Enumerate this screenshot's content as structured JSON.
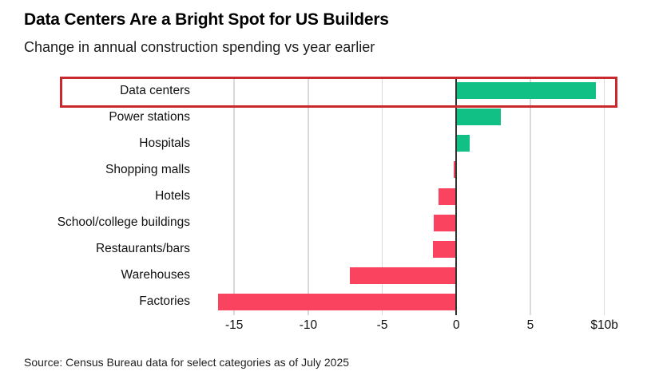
{
  "header": {
    "title": "Data Centers Are a Bright Spot for US Builders",
    "subtitle": "Change in annual construction spending vs year earlier"
  },
  "chart_data": {
    "type": "bar",
    "orientation": "horizontal",
    "unit": "billions of US dollars",
    "categories": [
      "Data centers",
      "Power stations",
      "Hospitals",
      "Shopping malls",
      "Hotels",
      "School/college buildings",
      "Restaurants/bars",
      "Warehouses",
      "Factories"
    ],
    "values": [
      9.4,
      3.0,
      0.9,
      -0.2,
      -1.2,
      -1.5,
      -1.6,
      -7.2,
      -16.1
    ],
    "xlim": [
      -16.9,
      11.8
    ],
    "xticks": [
      {
        "value": -15,
        "label": "-15"
      },
      {
        "value": -10,
        "label": "-10"
      },
      {
        "value": -5,
        "label": "-5"
      },
      {
        "value": 0,
        "label": "0"
      },
      {
        "value": 5,
        "label": "5"
      },
      {
        "value": 10,
        "label": "$10b"
      }
    ],
    "highlighted_category": "Data centers",
    "grid": true,
    "legend": false,
    "colors": {
      "positive": "#11c084",
      "negative": "#fa435f",
      "highlight_border": "#c9282e",
      "gridline": "#d9d9d9",
      "zero_line": "#333333"
    }
  },
  "footer": {
    "source": "Source: Census Bureau data for select categories as of July 2025"
  }
}
